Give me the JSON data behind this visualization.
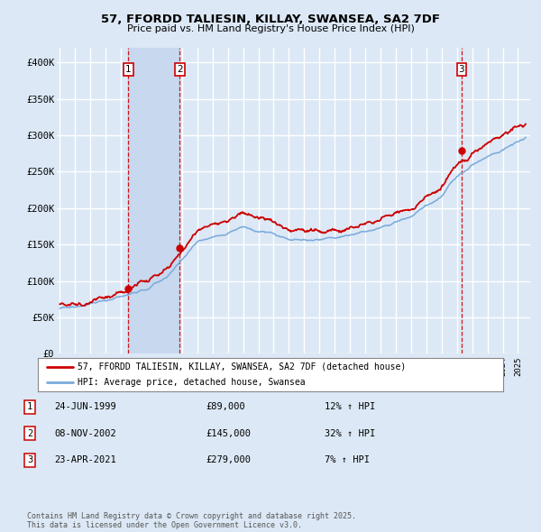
{
  "title": "57, FFORDD TALIESIN, KILLAY, SWANSEA, SA2 7DF",
  "subtitle": "Price paid vs. HM Land Registry's House Price Index (HPI)",
  "ylim": [
    0,
    420000
  ],
  "yticks": [
    0,
    50000,
    100000,
    150000,
    200000,
    250000,
    300000,
    350000,
    400000
  ],
  "ytick_labels": [
    "£0",
    "£50K",
    "£100K",
    "£150K",
    "£200K",
    "£250K",
    "£300K",
    "£350K",
    "£400K"
  ],
  "background_color": "#dce8f5",
  "plot_bg_color": "#dce8f5",
  "grid_color": "#ffffff",
  "hpi_color": "#7aaadc",
  "price_color": "#cc0000",
  "shade_color": "#c8d8ee",
  "transactions": [
    {
      "label": "1",
      "date_num": 1999.48,
      "price": 89000
    },
    {
      "label": "2",
      "date_num": 2002.85,
      "price": 145000
    },
    {
      "label": "3",
      "date_num": 2021.31,
      "price": 279000
    }
  ],
  "legend_line1": "57, FFORDD TALIESIN, KILLAY, SWANSEA, SA2 7DF (detached house)",
  "legend_line2": "HPI: Average price, detached house, Swansea",
  "footnote": "Contains HM Land Registry data © Crown copyright and database right 2025.\nThis data is licensed under the Open Government Licence v3.0.",
  "table_rows": [
    {
      "num": "1",
      "date": "24-JUN-1999",
      "price": "£89,000",
      "hpi": "12% ↑ HPI"
    },
    {
      "num": "2",
      "date": "08-NOV-2002",
      "price": "£145,000",
      "hpi": "32% ↑ HPI"
    },
    {
      "num": "3",
      "date": "23-APR-2021",
      "price": "£279,000",
      "hpi": "7% ↑ HPI"
    }
  ]
}
